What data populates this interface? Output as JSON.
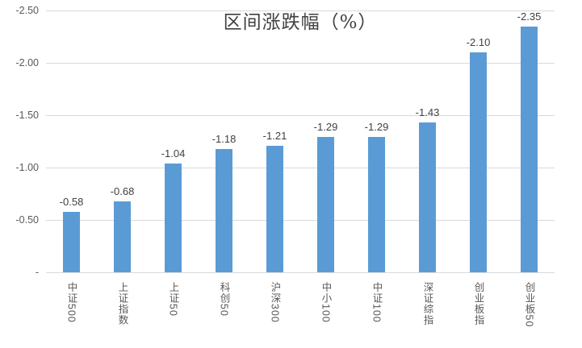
{
  "colors": {
    "bar": "#5b9bd5",
    "grid": "#d9d9d9",
    "axis_line": "#d9d9d9",
    "axis_text": "#595959",
    "value_label_text": "#404040",
    "title_text": "#404040",
    "background": "#ffffff"
  },
  "y_axis": {
    "ticks": [
      "-2.50",
      "-2.00",
      "-1.50",
      "-1.00",
      "-0.50",
      "-"
    ],
    "reversed": true
  },
  "chart_data": {
    "type": "bar",
    "title": "区间涨跌幅（%）",
    "categories": [
      "中证500",
      "上证指数",
      "上证50",
      "科创50",
      "沪深300",
      "中小100",
      "中证100",
      "深证综指",
      "创业板指",
      "创业板50"
    ],
    "values": [
      -0.58,
      -0.68,
      -1.04,
      -1.18,
      -1.21,
      -1.29,
      -1.29,
      -1.43,
      -2.1,
      -2.35
    ],
    "value_labels": [
      "-0.58",
      "-0.68",
      "-1.04",
      "-1.18",
      "-1.21",
      "-1.29",
      "-1.29",
      "-1.43",
      "-2.10",
      "-2.35"
    ],
    "xlabel": "",
    "ylabel": "",
    "ylim": [
      0,
      -2.5
    ],
    "grid": true,
    "legend": false,
    "axis_reversed": true,
    "orientation": "vertical"
  }
}
